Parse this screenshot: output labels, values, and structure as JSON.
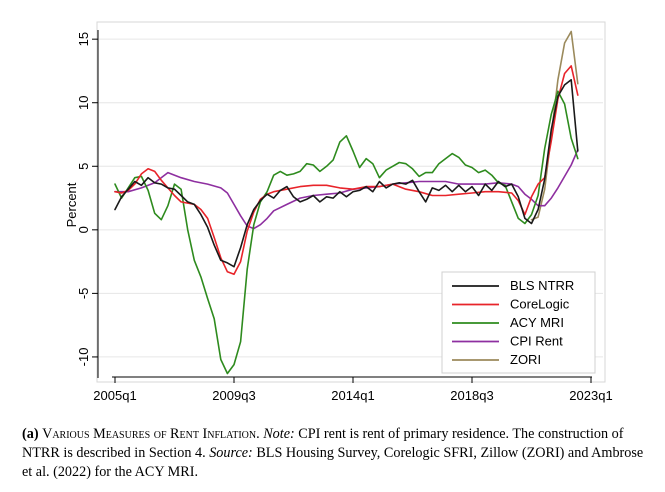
{
  "chart_data": {
    "type": "line",
    "ylabel": "Percent",
    "ylim": [
      -11.5,
      15.8
    ],
    "xlim": [
      2004.8,
      2023.0
    ],
    "yticks": [
      15,
      10,
      5,
      0,
      -5,
      -10
    ],
    "ytick_labels": [
      "15",
      "10",
      "5",
      "0",
      "-5",
      "-10"
    ],
    "xticks": [
      2005.0,
      2009.5,
      2014.0,
      2018.5,
      2023.0
    ],
    "xtick_labels": [
      "2005q1",
      "2009q3",
      "2014q1",
      "2018q3",
      "2023q1"
    ],
    "grid": "horizontal",
    "legend_position": "bottom-right",
    "series": [
      {
        "name": "BLS NTRR",
        "color": "#1a1a1a",
        "x": [
          2005.0,
          2005.25,
          2005.5,
          2005.75,
          2006.0,
          2006.25,
          2006.5,
          2006.75,
          2007.0,
          2007.25,
          2007.5,
          2007.75,
          2008.0,
          2008.25,
          2008.5,
          2008.75,
          2009.0,
          2009.25,
          2009.5,
          2009.75,
          2010.0,
          2010.25,
          2010.5,
          2010.75,
          2011.0,
          2011.25,
          2011.5,
          2011.75,
          2012.0,
          2012.25,
          2012.5,
          2012.75,
          2013.0,
          2013.25,
          2013.5,
          2013.75,
          2014.0,
          2014.25,
          2014.5,
          2014.75,
          2015.0,
          2015.25,
          2015.5,
          2015.75,
          2016.0,
          2016.25,
          2016.5,
          2016.75,
          2017.0,
          2017.25,
          2017.5,
          2017.75,
          2018.0,
          2018.25,
          2018.5,
          2018.75,
          2019.0,
          2019.25,
          2019.5,
          2019.75,
          2020.0,
          2020.25,
          2020.5,
          2020.75,
          2021.0,
          2021.25,
          2021.5,
          2021.75,
          2022.0,
          2022.25,
          2022.5
        ],
        "y": [
          1.6,
          2.6,
          3.2,
          3.8,
          3.5,
          4.1,
          3.7,
          3.6,
          3.3,
          3.2,
          2.7,
          2.2,
          2.0,
          1.2,
          0.2,
          -1.2,
          -2.4,
          -2.6,
          -2.9,
          -1.4,
          0.4,
          1.6,
          2.3,
          2.8,
          2.5,
          3.1,
          3.4,
          2.6,
          2.2,
          2.4,
          2.7,
          2.2,
          2.6,
          2.5,
          3.0,
          2.6,
          3.0,
          3.1,
          3.4,
          3.0,
          3.8,
          3.3,
          3.6,
          3.7,
          3.6,
          3.9,
          3.0,
          2.2,
          3.3,
          3.1,
          3.5,
          3.0,
          3.5,
          3.0,
          3.4,
          2.7,
          3.6,
          3.1,
          3.8,
          3.4,
          3.6,
          2.6,
          0.9,
          0.5,
          1.6,
          4.0,
          7.9,
          10.5,
          11.4,
          11.8,
          6.2
        ]
      },
      {
        "name": "CoreLogic",
        "color": "#e8242a",
        "x": [
          2005.0,
          2005.25,
          2005.5,
          2005.75,
          2006.0,
          2006.25,
          2006.5,
          2006.75,
          2007.0,
          2007.25,
          2007.5,
          2007.75,
          2008.0,
          2008.25,
          2008.5,
          2008.75,
          2009.0,
          2009.25,
          2009.5,
          2009.75,
          2010.0,
          2010.25,
          2010.5,
          2010.75,
          2011.0,
          2011.5,
          2012.0,
          2012.5,
          2013.0,
          2013.5,
          2014.0,
          2014.5,
          2015.0,
          2015.5,
          2016.0,
          2016.5,
          2017.0,
          2017.5,
          2018.0,
          2018.5,
          2019.0,
          2019.5,
          2020.0,
          2020.25,
          2020.5,
          2020.75,
          2021.0,
          2021.25,
          2021.5,
          2021.75,
          2022.0,
          2022.25,
          2022.5
        ],
        "y": [
          3.0,
          2.9,
          3.1,
          3.6,
          4.4,
          4.8,
          4.6,
          3.9,
          3.3,
          2.7,
          2.2,
          2.1,
          2.0,
          1.6,
          0.9,
          -0.6,
          -2.2,
          -3.3,
          -3.5,
          -2.5,
          -0.1,
          1.4,
          2.4,
          2.8,
          3.0,
          3.2,
          3.4,
          3.5,
          3.5,
          3.3,
          3.2,
          3.4,
          3.4,
          3.6,
          3.2,
          3.0,
          2.7,
          2.7,
          2.8,
          2.9,
          3.0,
          3.0,
          2.9,
          2.3,
          1.2,
          2.6,
          3.6,
          4.1,
          7.0,
          10.3,
          12.3,
          12.9,
          10.6
        ]
      },
      {
        "name": "ACY MRI",
        "color": "#2e8b1e",
        "x": [
          2005.0,
          2005.25,
          2005.5,
          2005.75,
          2006.0,
          2006.25,
          2006.5,
          2006.75,
          2007.0,
          2007.25,
          2007.5,
          2007.75,
          2008.0,
          2008.25,
          2008.5,
          2008.75,
          2009.0,
          2009.25,
          2009.5,
          2009.75,
          2010.0,
          2010.25,
          2010.5,
          2010.75,
          2011.0,
          2011.25,
          2011.5,
          2011.75,
          2012.0,
          2012.25,
          2012.5,
          2012.75,
          2013.0,
          2013.25,
          2013.5,
          2013.75,
          2014.0,
          2014.25,
          2014.5,
          2014.75,
          2015.0,
          2015.25,
          2015.5,
          2015.75,
          2016.0,
          2016.25,
          2016.5,
          2016.75,
          2017.0,
          2017.25,
          2017.5,
          2017.75,
          2018.0,
          2018.25,
          2018.5,
          2018.75,
          2019.0,
          2019.25,
          2019.5,
          2019.75,
          2020.0,
          2020.25,
          2020.5,
          2020.75,
          2021.0,
          2021.25,
          2021.5,
          2021.75,
          2022.0,
          2022.25,
          2022.5
        ],
        "y": [
          3.6,
          2.5,
          3.3,
          4.1,
          4.2,
          3.1,
          1.3,
          0.8,
          1.9,
          3.6,
          3.2,
          0.0,
          -2.4,
          -3.7,
          -5.4,
          -7.0,
          -10.2,
          -11.3,
          -10.6,
          -8.8,
          -3.1,
          0.4,
          2.2,
          3.0,
          4.3,
          4.6,
          4.3,
          4.4,
          4.6,
          5.2,
          5.1,
          4.6,
          5.0,
          5.5,
          6.9,
          7.4,
          6.2,
          4.9,
          5.6,
          5.2,
          4.1,
          4.7,
          5.0,
          5.3,
          5.2,
          4.8,
          4.2,
          4.5,
          4.5,
          5.2,
          5.6,
          6.0,
          5.7,
          5.1,
          4.9,
          4.5,
          4.7,
          4.3,
          3.7,
          3.5,
          2.2,
          0.9,
          0.5,
          1.2,
          2.7,
          6.4,
          9.1,
          10.9,
          9.9,
          7.2,
          5.6
        ]
      },
      {
        "name": "CPI Rent",
        "color": "#8e2fa0",
        "x": [
          2005.0,
          2005.5,
          2006.0,
          2006.5,
          2007.0,
          2007.5,
          2008.0,
          2008.5,
          2009.0,
          2009.25,
          2009.5,
          2009.75,
          2010.0,
          2010.25,
          2010.5,
          2010.75,
          2011.0,
          2011.5,
          2012.0,
          2012.5,
          2013.0,
          2013.5,
          2014.0,
          2014.5,
          2015.0,
          2015.5,
          2016.0,
          2016.5,
          2017.0,
          2017.5,
          2018.0,
          2018.5,
          2019.0,
          2019.5,
          2020.0,
          2020.25,
          2020.5,
          2020.75,
          2021.0,
          2021.25,
          2021.5,
          2021.75,
          2022.0,
          2022.25,
          2022.5
        ],
        "y": [
          3.0,
          3.0,
          3.3,
          3.7,
          4.5,
          4.1,
          3.8,
          3.6,
          3.3,
          2.9,
          2.0,
          1.1,
          0.3,
          0.1,
          0.4,
          0.9,
          1.5,
          2.0,
          2.5,
          2.7,
          2.8,
          2.9,
          3.2,
          3.3,
          3.4,
          3.6,
          3.7,
          3.8,
          3.8,
          3.8,
          3.6,
          3.6,
          3.6,
          3.7,
          3.6,
          3.4,
          2.8,
          2.4,
          1.9,
          1.9,
          2.5,
          3.3,
          4.2,
          5.1,
          6.3
        ]
      },
      {
        "name": "ZORI",
        "color": "#9b8a5c",
        "x": [
          2020.75,
          2021.0,
          2021.25,
          2021.5,
          2021.75,
          2022.0,
          2022.25,
          2022.5
        ],
        "y": [
          0.8,
          1.0,
          3.2,
          7.5,
          11.8,
          14.7,
          15.6,
          11.5
        ]
      }
    ]
  },
  "caption": {
    "label": "(a)",
    "title": "Various Measures of Rent Inflation.",
    "note_label": "Note:",
    "note_text": "CPI rent is rent of primary residence. The construction of NTRR is described in Section 4.",
    "source_label": "Source:",
    "source_text": "BLS Housing Survey, Corelogic SFRI, Zillow (ZORI) and Ambrose et al. (2022) for the ACY MRI."
  }
}
